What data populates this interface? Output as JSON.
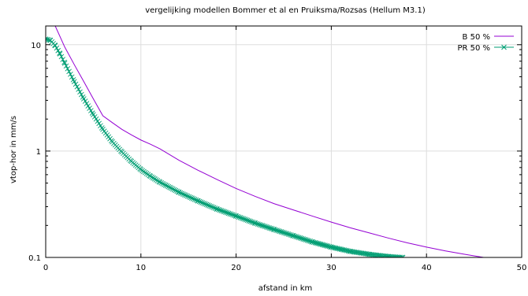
{
  "chart_data": {
    "type": "line",
    "title": "vergelijking modellen Bommer et al en Pruiksma/Rozsas (Hellum M3.1)",
    "xlabel": "afstand in km",
    "ylabel": "vtop-hor in mm/s",
    "xlim": [
      0,
      50
    ],
    "ylim": [
      0.1,
      15
    ],
    "yscale": "log",
    "grid": true,
    "legend_position": "top-right",
    "x_ticks": [
      0,
      10,
      20,
      30,
      40,
      50
    ],
    "x_tick_labels": [
      "0",
      "10",
      "20",
      "30",
      "40",
      "50"
    ],
    "y_ticks": [
      0.1,
      1,
      10
    ],
    "y_tick_labels": [
      "0.1",
      "1",
      "10"
    ],
    "series": [
      {
        "name": "B  50 %",
        "color": "#9400d3",
        "marker": "none",
        "x": [
          1,
          2,
          3,
          4,
          5,
          6,
          7,
          8,
          9,
          10,
          11,
          12,
          14,
          16,
          18,
          20,
          22,
          24,
          26,
          28,
          30,
          32,
          34,
          36,
          38,
          40,
          42,
          44,
          46,
          47.3
        ],
        "y": [
          15,
          9.5,
          6.5,
          4.5,
          3.1,
          2.15,
          1.85,
          1.6,
          1.42,
          1.27,
          1.16,
          1.05,
          0.82,
          0.66,
          0.54,
          0.445,
          0.375,
          0.32,
          0.28,
          0.245,
          0.215,
          0.19,
          0.17,
          0.152,
          0.137,
          0.125,
          0.115,
          0.107,
          0.1,
          0.097
        ]
      },
      {
        "name": "PR  50 %",
        "color": "#009e73",
        "marker": "x",
        "x": [
          0,
          0.5,
          1,
          1.5,
          2,
          3,
          4,
          5,
          6,
          7,
          8,
          9,
          10,
          11,
          12,
          14,
          16,
          18,
          20,
          22,
          24,
          26,
          28,
          30,
          32,
          34,
          36,
          37.5
        ],
        "y": [
          11.3,
          11.0,
          9.8,
          8.2,
          6.7,
          4.5,
          3.1,
          2.2,
          1.6,
          1.22,
          0.98,
          0.8,
          0.67,
          0.58,
          0.51,
          0.41,
          0.34,
          0.285,
          0.245,
          0.21,
          0.183,
          0.16,
          0.14,
          0.125,
          0.114,
          0.107,
          0.102,
          0.1
        ]
      }
    ]
  }
}
